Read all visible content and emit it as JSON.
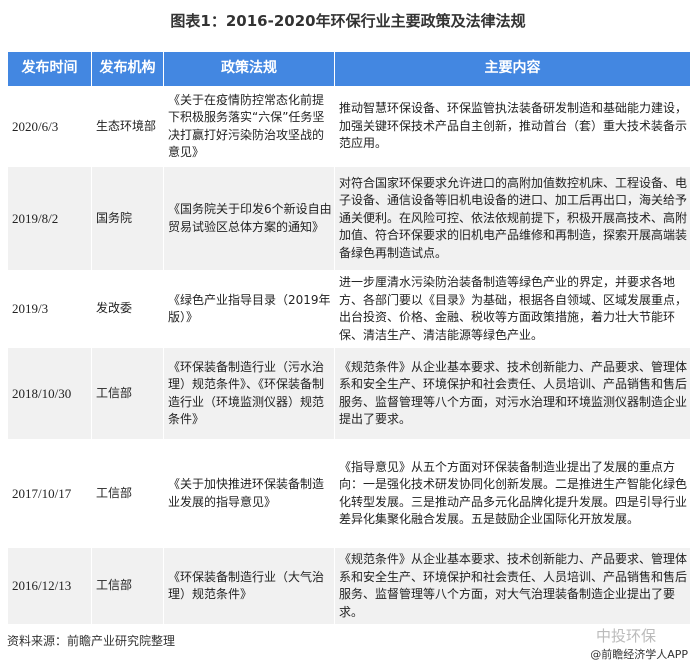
{
  "title": "图表1：2016-2020年环保行业主要政策及法律法规",
  "columns": [
    "发布时间",
    "发布机构",
    "政策法规",
    "主要内容"
  ],
  "rows": [
    {
      "date": "2020/6/3",
      "agency": "生态环境部",
      "policy": "《关于在疫情防控常态化前提下积极服务落实“六保”任务坚决打赢打好污染防治攻坚战的意见》",
      "content": "推动智慧环保设备、环保监管执法装备研发制造和基础能力建设，加强关键环保技术产品自主创新，推动首台（套）重大技术装备示范应用。"
    },
    {
      "date": "2019/8/2",
      "agency": "国务院",
      "policy": "《国务院关于印发6个新设自由贸易试验区总体方案的通知》",
      "content": "对符合国家环保要求允许进口的高附加值数控机床、工程设备、电子设备、通信设备等旧机电设备的进口、加工后再出口，海关给予通关便利。在风险可控、依法依规前提下，积极开展高技术、高附加值、符合环保要求的旧机电产品维修和再制造，探索开展高端装备绿色再制造试点。"
    },
    {
      "date": "2019/3",
      "agency": "发改委",
      "policy": "《绿色产业指导目录（2019年版）》",
      "content": "进一步厘清水污染防治装备制造等绿色产业的界定，并要求各地方、各部门要以《目录》为基础，根据各自领域、区域发展重点，出台投资、价格、金融、税收等方面政策措施，着力壮大节能环保、清洁生产、清洁能源等绿色产业。"
    },
    {
      "date": "2018/10/30",
      "agency": "工信部",
      "policy": "《环保装备制造行业（污水治理）规范条件》、《环保装备制造行业（环境监测仪器）规范条件》",
      "content": "《规范条件》从企业基本要求、技术创新能力、产品要求、管理体系和安全生产、环境保护和社会责任、人员培训、产品销售和售后服务、监督管理等八个方面，对污水治理和环境监测仪器制造企业提出了要求。"
    },
    {
      "date": "2017/10/17",
      "agency": "工信部",
      "policy": "《关于加快推进环保装备制造业发展的指导意见》",
      "content": "《指导意见》从五个方面对环保装备制造业提出了发展的重点方向：一是强化技术研发协同化创新发展。二是推进生产智能化绿色化转型发展。三是推动产品多元化品牌化提升发展。四是引导行业差异化集聚化融合发展。五是鼓励企业国际化开放发展。"
    },
    {
      "date": "2016/12/13",
      "agency": "工信部",
      "policy": "《环保装备制造行业（大气治理）规范条件》",
      "content": "《规范条件》从企业基本要求、技术创新能力、产品要求、管理体系和安全生产、环境保护和社会责任、人员培训、产品销售和售后服务、监督管理等八个方面，对大气治理装备制造企业提出了要求。"
    }
  ],
  "source": "资料来源：前瞻产业研究院整理",
  "watermark": {
    "account": "中投环保",
    "credit": "@前瞻经济学人APP"
  },
  "colors": {
    "header": "#4387e1",
    "alt_row": "#f1f1f1"
  }
}
